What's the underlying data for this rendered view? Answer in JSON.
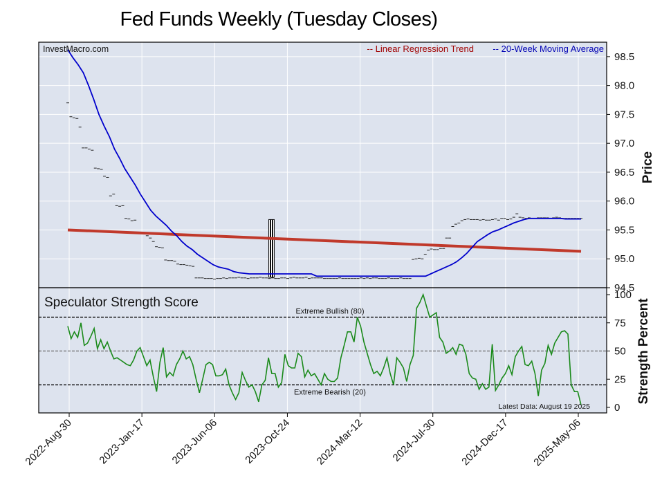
{
  "title": "Fed Funds Weekly (Tuesday Closes)",
  "source": "InvestMacro.com",
  "colors": {
    "panel_bg": "#dde3ee",
    "grid": "#ffffff",
    "regression": "#c0392b",
    "moving_average": "#0000cc",
    "score_line": "#1a8a1a",
    "legend_red": "#a00000",
    "legend_blue": "#0000b4"
  },
  "chart_data": [
    {
      "type": "candlestick",
      "title": "",
      "ylabel": "Price",
      "ylim": [
        94.5,
        98.75
      ],
      "yticks": [
        "94.5",
        "95.0",
        "95.5",
        "96.0",
        "96.5",
        "97.0",
        "97.5",
        "98.0",
        "98.5"
      ],
      "x_tick_labels": [
        "2022-Aug-30",
        "2023-Jan-17",
        "2023-Jun-06",
        "2023-Oct-24",
        "2024-Mar-12",
        "2024-Jul-30",
        "2024-Dec-17",
        "2025-May-06"
      ],
      "legend": [
        {
          "name": "-- Linear Regression Trend",
          "color": "#a00000"
        },
        {
          "name": "-- 20-Week Moving Average",
          "color": "#0000b4"
        }
      ],
      "regression_line": {
        "start": 95.5,
        "end": 95.13
      },
      "closes": [
        97.7,
        97.46,
        97.44,
        97.43,
        97.28,
        96.92,
        96.92,
        96.9,
        96.88,
        96.57,
        96.56,
        96.55,
        96.43,
        96.41,
        96.09,
        96.12,
        95.92,
        95.91,
        95.92,
        95.7,
        95.69,
        95.66,
        95.67,
        95.46,
        95.45,
        95.44,
        95.4,
        95.36,
        95.3,
        95.21,
        95.2,
        95.19,
        94.98,
        94.97,
        94.97,
        94.96,
        94.91,
        94.9,
        94.9,
        94.89,
        94.88,
        94.87,
        94.67,
        94.67,
        94.67,
        94.66,
        94.66,
        94.66,
        94.65,
        94.66,
        94.66,
        94.67,
        94.66,
        94.67,
        94.67,
        94.67,
        94.68,
        94.67,
        94.67,
        94.66,
        94.67,
        94.67,
        94.67,
        94.68,
        94.67,
        94.67,
        94.66,
        94.67,
        94.66,
        94.66,
        94.67,
        94.67,
        94.66,
        94.67,
        94.68,
        94.67,
        94.67,
        94.67,
        94.68,
        94.66,
        94.67,
        94.67,
        94.67,
        94.67,
        94.66,
        94.66,
        94.66,
        94.66,
        94.66,
        94.67,
        94.66,
        94.66,
        94.66,
        94.66,
        94.66,
        94.66,
        94.67,
        94.66,
        94.67,
        94.66,
        94.67,
        94.67,
        94.66,
        94.66,
        94.66,
        94.67,
        94.66,
        94.66,
        94.66,
        94.67,
        94.66,
        94.66,
        94.66,
        94.99,
        95.0,
        95.01,
        95.0,
        95.08,
        95.15,
        95.17,
        95.16,
        95.16,
        95.18,
        95.18,
        95.36,
        95.36,
        95.56,
        95.6,
        95.62,
        95.66,
        95.68,
        95.69,
        95.68,
        95.68,
        95.68,
        95.67,
        95.68,
        95.67,
        95.67,
        95.68,
        95.69,
        95.67,
        95.7,
        95.7,
        95.68,
        95.69,
        95.72,
        95.78,
        95.72,
        95.71,
        95.7,
        95.71,
        95.7,
        95.7,
        95.71,
        95.71,
        95.71,
        95.71,
        95.7,
        95.71,
        95.72,
        95.71,
        95.7,
        95.7,
        95.7,
        95.7,
        95.7,
        95.7,
        95.7
      ],
      "moving_average": [
        98.62,
        98.48,
        98.36,
        98.22,
        98.0,
        97.76,
        97.5,
        97.3,
        97.12,
        96.9,
        96.74,
        96.56,
        96.42,
        96.28,
        96.12,
        95.98,
        95.84,
        95.74,
        95.66,
        95.58,
        95.48,
        95.4,
        95.3,
        95.22,
        95.16,
        95.08,
        95.02,
        94.96,
        94.9,
        94.86,
        94.84,
        94.82,
        94.78,
        94.76,
        94.75,
        94.74,
        94.74,
        94.74,
        94.74,
        94.74,
        94.74,
        94.74,
        94.74,
        94.74,
        94.74,
        94.74,
        94.74,
        94.74,
        94.7,
        94.7,
        94.7,
        94.7,
        94.7,
        94.7,
        94.7,
        94.7,
        94.7,
        94.7,
        94.7,
        94.7,
        94.7,
        94.7,
        94.7,
        94.7,
        94.7,
        94.7,
        94.7,
        94.7,
        94.7,
        94.7,
        94.74,
        94.78,
        94.82,
        94.86,
        94.9,
        94.95,
        95.02,
        95.1,
        95.2,
        95.3,
        95.36,
        95.42,
        95.47,
        95.5,
        95.54,
        95.58,
        95.62,
        95.65,
        95.68,
        95.7,
        95.7,
        95.7,
        95.7,
        95.7,
        95.7,
        95.7,
        95.69,
        95.69,
        95.69,
        95.69
      ]
    },
    {
      "type": "line",
      "title": "Speculator Strength Score",
      "ylabel": "Strength Percent",
      "ylim": [
        0,
        100
      ],
      "yticks": [
        "0",
        "25",
        "50",
        "75",
        "100"
      ],
      "reference_lines": [
        {
          "label": "Extreme Bullish (80)",
          "value": 80
        },
        {
          "label": "Extreme Bearish (20)",
          "value": 20
        },
        {
          "label": "",
          "value": 50
        }
      ],
      "latest_data": "Latest Data: August 19 2025",
      "values": [
        72,
        61,
        67,
        62,
        75,
        55,
        57,
        63,
        70,
        52,
        60,
        52,
        58,
        50,
        43,
        44,
        42,
        40,
        38,
        37,
        42,
        50,
        53,
        45,
        37,
        42,
        27,
        14,
        40,
        53,
        27,
        31,
        28,
        38,
        43,
        50,
        43,
        45,
        38,
        25,
        13,
        25,
        38,
        40,
        38,
        28,
        28,
        29,
        34,
        20,
        13,
        7,
        13,
        31,
        24,
        18,
        20,
        14,
        5,
        20,
        24,
        44,
        30,
        30,
        18,
        22,
        47,
        37,
        35,
        35,
        48,
        45,
        27,
        33,
        28,
        30,
        25,
        20,
        30,
        25,
        23,
        23,
        26,
        44,
        55,
        67,
        67,
        58,
        80,
        72,
        58,
        48,
        38,
        30,
        32,
        28,
        35,
        44,
        30,
        20,
        44,
        40,
        35,
        23,
        38,
        46,
        88,
        93,
        100,
        90,
        80,
        82,
        84,
        62,
        58,
        48,
        50,
        53,
        47,
        56,
        55,
        47,
        30,
        26,
        25,
        16,
        21,
        16,
        18,
        56,
        15,
        20,
        26,
        30,
        37,
        29,
        45,
        50,
        54,
        38,
        37,
        41,
        30,
        10,
        33,
        39,
        55,
        47,
        57,
        62,
        67,
        68,
        65,
        20,
        14,
        14,
        2
      ]
    }
  ]
}
